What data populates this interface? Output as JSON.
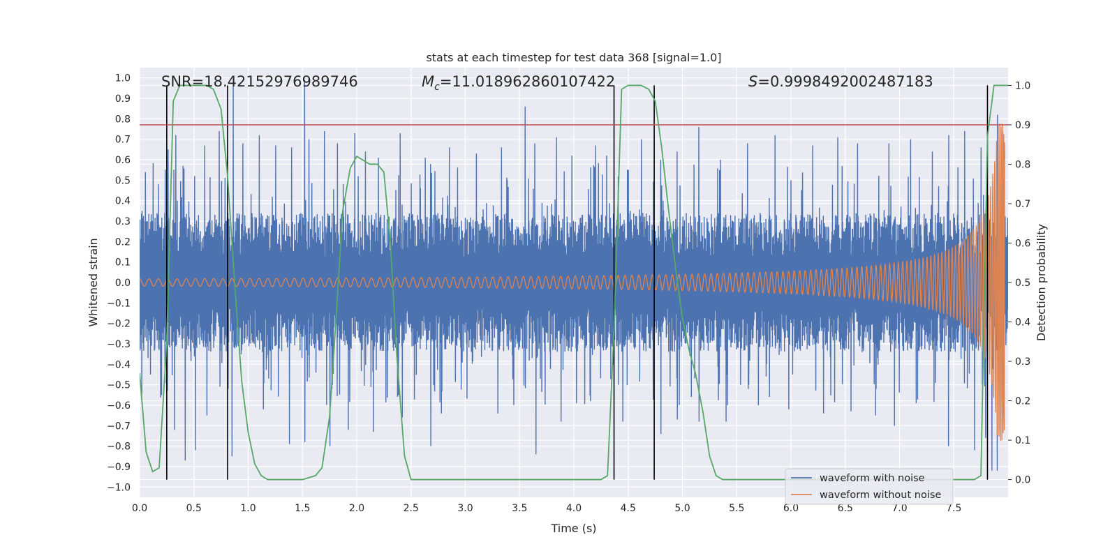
{
  "chart_data": {
    "type": "line",
    "title": "stats at each timestep for test data 368 [signal=1.0]",
    "xlabel": "Time (s)",
    "ylabel": "Whitened strain",
    "y2label": "Detection probability",
    "xlim": [
      0.0,
      8.0
    ],
    "ylim": [
      -1.05,
      1.05
    ],
    "y2lim": [
      -0.045,
      1.045
    ],
    "x_ticks": [
      0.0,
      0.5,
      1.0,
      1.5,
      2.0,
      2.5,
      3.0,
      3.5,
      4.0,
      4.5,
      5.0,
      5.5,
      6.0,
      6.5,
      7.0,
      7.5
    ],
    "x_tick_labels": [
      "0.0",
      "0.5",
      "1.0",
      "1.5",
      "2.0",
      "2.5",
      "3.0",
      "3.5",
      "4.0",
      "4.5",
      "5.0",
      "5.5",
      "6.0",
      "6.5",
      "7.0",
      "7.5"
    ],
    "y_ticks": [
      -1.0,
      -0.9,
      -0.8,
      -0.7,
      -0.6,
      -0.5,
      -0.4,
      -0.3,
      -0.2,
      -0.1,
      0.0,
      0.1,
      0.2,
      0.3,
      0.4,
      0.5,
      0.6,
      0.7,
      0.8,
      0.9,
      1.0
    ],
    "y_tick_labels": [
      "−1.0",
      "−0.9",
      "−0.8",
      "−0.7",
      "−0.6",
      "−0.5",
      "−0.4",
      "−0.3",
      "−0.2",
      "−0.1",
      "0.0",
      "0.1",
      "0.2",
      "0.3",
      "0.4",
      "0.5",
      "0.6",
      "0.7",
      "0.8",
      "0.9",
      "1.0"
    ],
    "y2_ticks": [
      0.0,
      0.1,
      0.2,
      0.3,
      0.4,
      0.5,
      0.6,
      0.7,
      0.8,
      0.9,
      1.0
    ],
    "y2_tick_labels": [
      "0.0",
      "0.1",
      "0.2",
      "0.3",
      "0.4",
      "0.5",
      "0.6",
      "0.7",
      "0.8",
      "0.9",
      "1.0"
    ],
    "annotations": {
      "snr": "SNR=18.42152976989746",
      "mc_symbol": "M",
      "mc_sub": "c",
      "mc_value": "=11.018962860107422",
      "s_symbol": "S",
      "s_value": "=0.9998492002487183"
    },
    "threshold": {
      "value": 0.9,
      "axis": "y2",
      "color": "#c44e52"
    },
    "vertical_lines": [
      0.25,
      0.81,
      4.37,
      4.74,
      7.81
    ],
    "detection_probability": {
      "name": "detection probability",
      "color": "#55a868",
      "x": [
        0.0,
        0.06,
        0.12,
        0.18,
        0.25,
        0.31,
        0.37,
        0.44,
        0.5,
        0.56,
        0.62,
        0.68,
        0.75,
        0.81,
        0.87,
        0.94,
        1.0,
        1.06,
        1.12,
        1.18,
        1.25,
        1.37,
        1.5,
        1.62,
        1.68,
        1.75,
        1.81,
        1.87,
        1.94,
        2.0,
        2.06,
        2.12,
        2.19,
        2.25,
        2.31,
        2.37,
        2.44,
        2.5,
        3.0,
        3.5,
        4.0,
        4.25,
        4.31,
        4.37,
        4.44,
        4.5,
        4.56,
        4.62,
        4.69,
        4.75,
        4.81,
        4.87,
        4.94,
        5.0,
        5.06,
        5.12,
        5.19,
        5.25,
        5.31,
        5.37,
        6.0,
        7.0,
        7.5,
        7.69,
        7.75,
        7.81,
        7.87,
        7.94,
        8.0
      ],
      "values": [
        0.27,
        0.07,
        0.02,
        0.03,
        0.35,
        0.96,
        1.0,
        1.0,
        1.0,
        1.0,
        1.0,
        0.99,
        0.94,
        0.77,
        0.52,
        0.25,
        0.12,
        0.04,
        0.01,
        0.0,
        0.0,
        0.0,
        0.0,
        0.01,
        0.03,
        0.16,
        0.41,
        0.68,
        0.79,
        0.82,
        0.81,
        0.8,
        0.8,
        0.78,
        0.6,
        0.31,
        0.06,
        0.0,
        0.0,
        0.0,
        0.0,
        0.0,
        0.01,
        0.38,
        0.99,
        1.0,
        1.0,
        1.0,
        0.99,
        0.96,
        0.84,
        0.69,
        0.53,
        0.41,
        0.33,
        0.27,
        0.17,
        0.06,
        0.01,
        0.0,
        0.0,
        0.0,
        0.0,
        0.0,
        0.01,
        0.87,
        1.0,
        1.0,
        1.0
      ]
    },
    "series": [
      {
        "name": "waveform with noise",
        "color": "#4c72b0",
        "peaks_x": [
          0.02,
          0.05,
          0.11,
          0.17,
          0.26,
          0.33,
          0.4,
          0.6,
          0.73,
          0.86,
          0.95,
          1.1,
          1.25,
          1.4,
          1.52,
          1.56,
          1.7,
          1.82,
          1.98,
          2.08,
          2.2,
          2.4,
          2.63,
          2.85,
          3.1,
          3.33,
          3.55,
          3.64,
          3.84,
          3.98,
          4.2,
          4.3,
          4.5,
          4.62,
          4.8,
          4.95,
          5.15,
          5.35,
          5.6,
          5.85,
          6.2,
          6.43,
          6.61,
          6.9,
          7.1,
          7.3,
          7.45,
          7.6,
          7.75,
          7.9,
          7.95
        ],
        "peaks_y": [
          0.35,
          0.54,
          0.3,
          0.48,
          0.65,
          0.72,
          0.57,
          0.67,
          0.74,
          0.96,
          0.68,
          0.72,
          0.67,
          0.66,
          0.99,
          0.7,
          0.74,
          0.68,
          0.73,
          0.64,
          0.61,
          0.73,
          0.61,
          0.66,
          0.63,
          0.66,
          0.86,
          0.68,
          0.71,
          0.62,
          0.67,
          0.62,
          0.55,
          0.7,
          0.6,
          0.64,
          0.76,
          0.6,
          0.68,
          0.72,
          0.67,
          0.71,
          0.68,
          0.68,
          0.7,
          0.64,
          0.72,
          0.74,
          0.66,
          0.82,
          0.74
        ],
        "troughs_x": [
          0.02,
          0.1,
          0.2,
          0.32,
          0.42,
          0.51,
          0.62,
          0.85,
          1.14,
          1.38,
          1.52,
          1.75,
          1.92,
          2.15,
          2.42,
          2.68,
          2.78,
          3.3,
          3.65,
          3.88,
          4.15,
          4.45,
          4.8,
          4.95,
          5.15,
          5.4,
          5.7,
          5.98,
          6.3,
          6.55,
          6.78,
          6.95,
          7.15,
          7.45,
          7.69,
          7.79,
          7.85,
          7.9
        ],
        "troughs_y": [
          -0.55,
          -0.45,
          -0.55,
          -0.72,
          -0.87,
          -0.82,
          -0.65,
          -0.85,
          -0.62,
          -0.79,
          -0.78,
          -0.8,
          -0.72,
          -0.73,
          -0.66,
          -0.8,
          -0.64,
          -0.64,
          -0.84,
          -0.68,
          -0.58,
          -0.68,
          -0.74,
          -0.67,
          -0.68,
          -0.68,
          -0.6,
          -0.62,
          -0.64,
          -0.63,
          -0.65,
          -0.7,
          -0.59,
          -0.8,
          -0.82,
          -0.76,
          -0.92,
          -0.92
        ]
      },
      {
        "name": "waveform without noise",
        "color": "#dd8452",
        "description": "chirp: amplitude grows from ~0.02 to ~0.78 near 7.95 s"
      }
    ],
    "legend": {
      "location": "lower-right",
      "entries": [
        "waveform with noise",
        "waveform without noise"
      ]
    },
    "grid": true
  }
}
